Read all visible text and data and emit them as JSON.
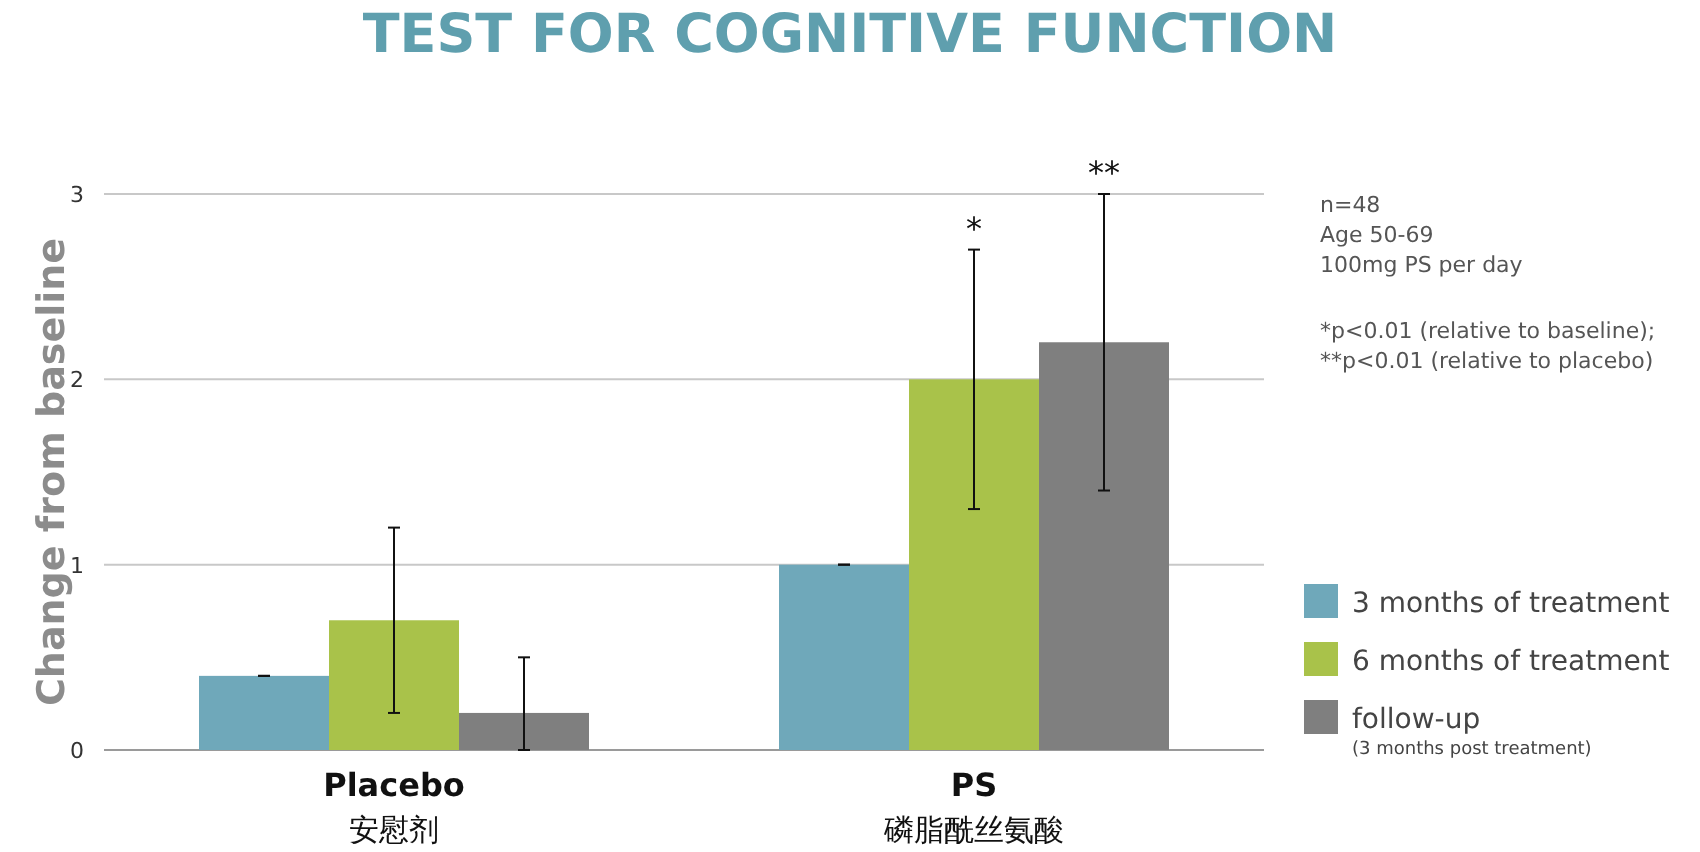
{
  "chart_data": {
    "type": "bar",
    "title": "TEST FOR COGNITIVE FUNCTION",
    "ylabel": "Change from baseline",
    "categories": [
      "Placebo\n安慰剂",
      "PS\n磷脂酰丝氨酸"
    ],
    "series": [
      {
        "name": "3 months of treatment",
        "color": "#6fa8ba",
        "values": [
          0.4,
          1.0
        ],
        "errors": [
          0,
          0
        ]
      },
      {
        "name": "6 months of treatment",
        "color": "#a9c24a",
        "values": [
          0.7,
          2.0
        ],
        "errors": [
          [
            0.2,
            1.2
          ],
          [
            1.3,
            2.7
          ]
        ]
      },
      {
        "name": "follow-up\n(3 months post treatment)",
        "color": "#7f7f7f",
        "values": [
          0.2,
          2.2
        ],
        "errors": [
          [
            0,
            0.5
          ],
          [
            1.4,
            3.0
          ]
        ]
      }
    ],
    "ylim": [
      0,
      3
    ],
    "yticks": [
      0,
      1,
      2,
      3
    ],
    "grid": "y",
    "legend": "bottom right",
    "annotations": [
      "**",
      {
        "text": "*",
        "x": "PS\n磷脂酰丝氨酸",
        "y": 2.7
      },
      "n=48",
      "Age 50-69",
      "100mg PS per day",
      "*p<0.01 (relative to baseline);",
      "**p<0.01 (relative to placebo)"
    ]
  }
}
